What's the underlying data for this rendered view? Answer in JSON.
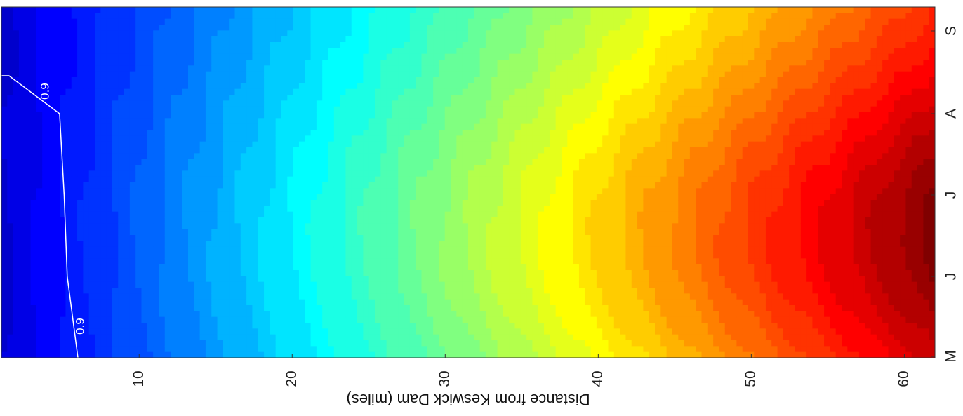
{
  "chart_data": {
    "type": "heatmap",
    "orientation_note_hidden": false,
    "xlabel": "Distance from Keswick Dam (miles)",
    "x_ticks": [
      10,
      20,
      30,
      40,
      50,
      60
    ],
    "xlim": [
      1,
      62
    ],
    "y_ticks": [
      "M",
      "J",
      "J",
      "A",
      "S"
    ],
    "colormap": "jet",
    "contour_levels": [
      {
        "label": "0.9",
        "distance_miles_by_month": [
          {
            "month": "M",
            "distance": 6.0
          },
          {
            "month": "J",
            "distance": 5.3
          },
          {
            "month": "J",
            "distance": 5.1
          },
          {
            "month": "A",
            "distance": 4.8
          },
          {
            "month": "S",
            "distance": 1.5
          }
        ]
      }
    ],
    "contour_label_texts": [
      "0.9",
      "0.9"
    ]
  }
}
